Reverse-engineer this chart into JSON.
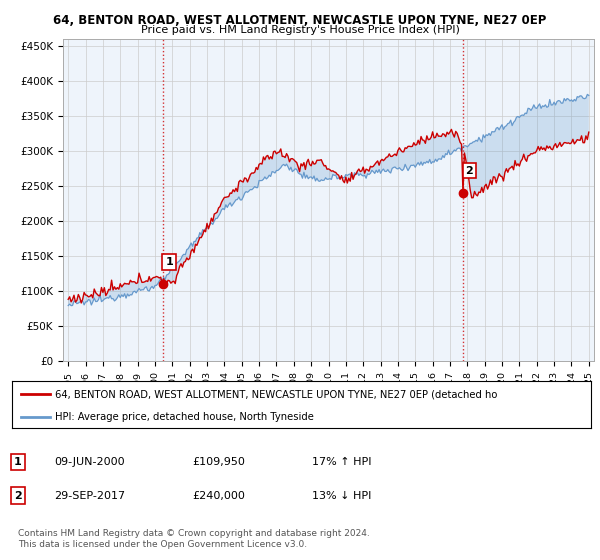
{
  "title": "64, BENTON ROAD, WEST ALLOTMENT, NEWCASTLE UPON TYNE, NE27 0EP",
  "subtitle": "Price paid vs. HM Land Registry's House Price Index (HPI)",
  "ylabel_ticks": [
    "£0",
    "£50K",
    "£100K",
    "£150K",
    "£200K",
    "£250K",
    "£300K",
    "£350K",
    "£400K",
    "£450K"
  ],
  "ytick_values": [
    0,
    50000,
    100000,
    150000,
    200000,
    250000,
    300000,
    350000,
    400000,
    450000
  ],
  "ylim": [
    0,
    460000
  ],
  "xlim_start": 1994.7,
  "xlim_end": 2025.3,
  "marker1_x": 2000.44,
  "marker1_y": 109950,
  "marker2_x": 2017.75,
  "marker2_y": 240000,
  "vline1_x": 2000.44,
  "vline2_x": 2017.75,
  "legend_line1": "64, BENTON ROAD, WEST ALLOTMENT, NEWCASTLE UPON TYNE, NE27 0EP (detached ho",
  "legend_line2": "HPI: Average price, detached house, North Tyneside",
  "table_row1": [
    "1",
    "09-JUN-2000",
    "£109,950",
    "17% ↑ HPI"
  ],
  "table_row2": [
    "2",
    "29-SEP-2017",
    "£240,000",
    "13% ↓ HPI"
  ],
  "footer": "Contains HM Land Registry data © Crown copyright and database right 2024.\nThis data is licensed under the Open Government Licence v3.0.",
  "red_color": "#cc0000",
  "blue_color": "#6699cc",
  "fill_color": "#ddeeff",
  "vline_color": "#cc0000",
  "grid_color": "#cccccc",
  "bg_color": "#ffffff"
}
